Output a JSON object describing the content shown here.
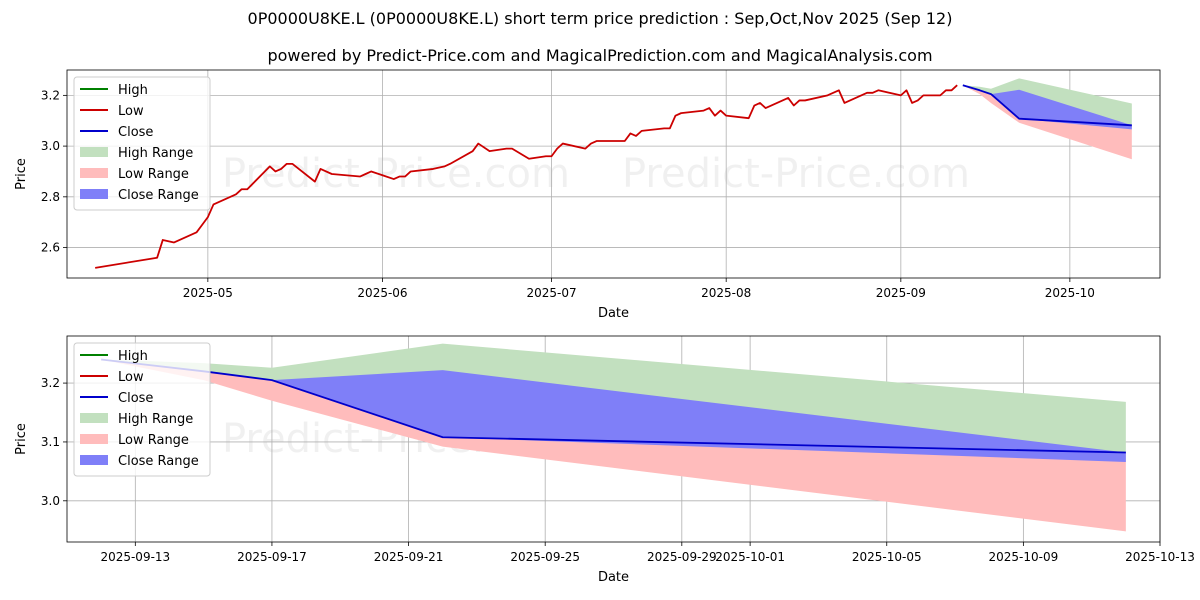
{
  "title": "0P0000U8KE.L (0P0000U8KE.L) short term price prediction : Sep,Oct,Nov 2025 (Sep 12)",
  "subtitle": "powered by Predict-Price.com and MagicalPrediction.com and MagicalAnalysis.com",
  "watermark": "Predict-Price.com",
  "colors": {
    "high": "#008000",
    "low": "#cc0000",
    "close": "#0000cc",
    "high_range": "#c2e0bf",
    "low_range": "#ffbcbc",
    "close_range": "#7f7ff8",
    "grid": "#b0b0b0"
  },
  "legend": [
    "High",
    "Low",
    "Close",
    "High Range",
    "Low Range",
    "Close Range"
  ],
  "chart_data": [
    {
      "type": "line",
      "xlabel": "Date",
      "ylabel": "Price",
      "ylim": [
        2.48,
        3.3
      ],
      "xlim": [
        "2025-04-06",
        "2025-10-17"
      ],
      "x_ticks": [
        "2025-05",
        "2025-06",
        "2025-07",
        "2025-08",
        "2025-09",
        "2025-10"
      ],
      "y_ticks": [
        2.6,
        2.8,
        3.0,
        3.2
      ],
      "grid": true,
      "legend_position": "upper-left",
      "series": [
        {
          "name": "Low",
          "x": [
            "2025-04-11",
            "2025-04-22",
            "2025-04-23",
            "2025-04-25",
            "2025-04-29",
            "2025-04-30",
            "2025-05-01",
            "2025-05-02",
            "2025-05-06",
            "2025-05-07",
            "2025-05-08",
            "2025-05-12",
            "2025-05-13",
            "2025-05-14",
            "2025-05-15",
            "2025-05-16",
            "2025-05-20",
            "2025-05-21",
            "2025-05-23",
            "2025-05-28",
            "2025-05-29",
            "2025-05-30",
            "2025-06-03",
            "2025-06-04",
            "2025-06-05",
            "2025-06-06",
            "2025-06-10",
            "2025-06-12",
            "2025-06-13",
            "2025-06-17",
            "2025-06-18",
            "2025-06-20",
            "2025-06-23",
            "2025-06-24",
            "2025-06-27",
            "2025-06-30",
            "2025-07-01",
            "2025-07-02",
            "2025-07-03",
            "2025-07-07",
            "2025-07-08",
            "2025-07-09",
            "2025-07-10",
            "2025-07-11",
            "2025-07-14",
            "2025-07-15",
            "2025-07-16",
            "2025-07-17",
            "2025-07-21",
            "2025-07-22",
            "2025-07-23",
            "2025-07-24",
            "2025-07-28",
            "2025-07-29",
            "2025-07-30",
            "2025-07-31",
            "2025-08-01",
            "2025-08-05",
            "2025-08-06",
            "2025-08-07",
            "2025-08-08",
            "2025-08-12",
            "2025-08-13",
            "2025-08-14",
            "2025-08-15",
            "2025-08-19",
            "2025-08-20",
            "2025-08-21",
            "2025-08-22",
            "2025-08-26",
            "2025-08-27",
            "2025-08-28",
            "2025-09-01",
            "2025-09-02",
            "2025-09-03",
            "2025-09-04",
            "2025-09-05",
            "2025-09-08",
            "2025-09-09",
            "2025-09-10",
            "2025-09-11"
          ],
          "y": [
            2.52,
            2.56,
            2.63,
            2.62,
            2.66,
            2.69,
            2.72,
            2.77,
            2.81,
            2.83,
            2.83,
            2.92,
            2.9,
            2.91,
            2.93,
            2.93,
            2.86,
            2.91,
            2.89,
            2.88,
            2.89,
            2.9,
            2.87,
            2.88,
            2.88,
            2.9,
            2.91,
            2.92,
            2.93,
            2.98,
            3.01,
            2.98,
            2.99,
            2.99,
            2.95,
            2.96,
            2.96,
            2.99,
            3.01,
            2.99,
            3.01,
            3.02,
            3.02,
            3.02,
            3.02,
            3.05,
            3.04,
            3.06,
            3.07,
            3.07,
            3.12,
            3.13,
            3.14,
            3.15,
            3.12,
            3.14,
            3.12,
            3.11,
            3.16,
            3.17,
            3.15,
            3.19,
            3.16,
            3.18,
            3.18,
            3.2,
            3.21,
            3.22,
            3.17,
            3.21,
            3.21,
            3.22,
            3.2,
            3.22,
            3.17,
            3.18,
            3.2,
            3.2,
            3.22,
            3.22,
            3.24
          ]
        },
        {
          "name": "Close",
          "x": [
            "2025-09-12",
            "2025-09-15",
            "2025-09-17",
            "2025-09-22",
            "2025-10-12"
          ],
          "y": [
            3.24,
            3.22,
            3.205,
            3.108,
            3.082
          ]
        }
      ],
      "ranges": {
        "high": {
          "x": [
            "2025-09-12",
            "2025-09-15",
            "2025-09-17",
            "2025-09-22",
            "2025-10-12"
          ],
          "upper": [
            3.24,
            3.234,
            3.226,
            3.267,
            3.168
          ],
          "lower": [
            3.24,
            3.22,
            3.205,
            3.108,
            3.082
          ]
        },
        "low": {
          "x": [
            "2025-09-12",
            "2025-09-15",
            "2025-09-17",
            "2025-09-22",
            "2025-10-12"
          ],
          "upper": [
            3.24,
            3.22,
            3.205,
            3.108,
            3.082
          ],
          "lower": [
            3.24,
            3.205,
            3.17,
            3.092,
            2.948
          ]
        },
        "close": {
          "x": [
            "2025-09-12",
            "2025-09-15",
            "2025-09-17",
            "2025-09-22",
            "2025-10-12"
          ],
          "upper": [
            3.24,
            3.22,
            3.205,
            3.222,
            3.082
          ],
          "lower": [
            3.24,
            3.22,
            3.205,
            3.108,
            3.066
          ]
        }
      }
    },
    {
      "type": "line",
      "xlabel": "Date",
      "ylabel": "Price",
      "ylim": [
        2.93,
        3.28
      ],
      "xlim": [
        "2025-09-11",
        "2025-10-13"
      ],
      "x_ticks": [
        "2025-09-13",
        "2025-09-17",
        "2025-09-21",
        "2025-09-25",
        "2025-09-29",
        "2025-10-01",
        "2025-10-05",
        "2025-10-09",
        "2025-10-13"
      ],
      "y_ticks": [
        3.0,
        3.1,
        3.2
      ],
      "grid": true,
      "legend_position": "upper-left",
      "series": [
        {
          "name": "Close",
          "x": [
            "2025-09-12",
            "2025-09-15",
            "2025-09-17",
            "2025-09-22",
            "2025-10-12"
          ],
          "y": [
            3.24,
            3.22,
            3.205,
            3.108,
            3.082
          ]
        }
      ],
      "ranges": {
        "high": {
          "x": [
            "2025-09-12",
            "2025-09-15",
            "2025-09-17",
            "2025-09-22",
            "2025-10-12"
          ],
          "upper": [
            3.24,
            3.234,
            3.226,
            3.267,
            3.168
          ],
          "lower": [
            3.24,
            3.22,
            3.205,
            3.108,
            3.082
          ]
        },
        "low": {
          "x": [
            "2025-09-12",
            "2025-09-15",
            "2025-09-17",
            "2025-09-22",
            "2025-10-12"
          ],
          "upper": [
            3.24,
            3.22,
            3.205,
            3.108,
            3.082
          ],
          "lower": [
            3.24,
            3.205,
            3.17,
            3.092,
            2.948
          ]
        },
        "close": {
          "x": [
            "2025-09-12",
            "2025-09-15",
            "2025-09-17",
            "2025-09-22",
            "2025-10-12"
          ],
          "upper": [
            3.24,
            3.22,
            3.205,
            3.222,
            3.082
          ],
          "lower": [
            3.24,
            3.22,
            3.205,
            3.108,
            3.066
          ]
        }
      }
    }
  ]
}
